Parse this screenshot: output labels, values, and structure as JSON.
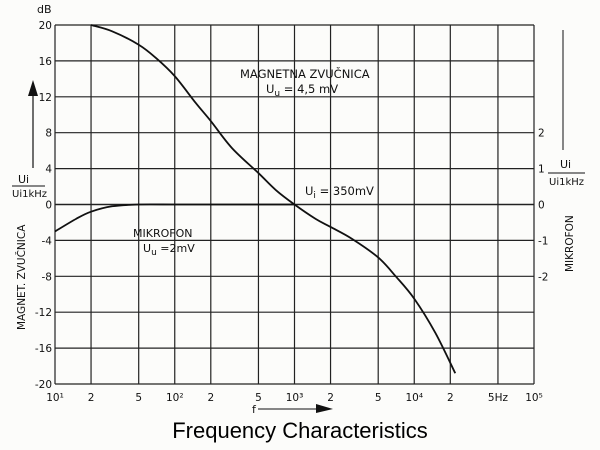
{
  "chart_data": {
    "type": "line",
    "title": "Frequency Characteristics",
    "x_scale": "log",
    "xlim": [
      10,
      100000
    ],
    "x_tick_labels": [
      "10¹",
      "2",
      "5",
      "10²",
      "2",
      "5",
      "10³",
      "2",
      "5",
      "10⁴",
      "2",
      "5Hz",
      "10⁵"
    ],
    "x_tick_values": [
      10,
      20,
      50,
      100,
      200,
      500,
      1000,
      2000,
      5000,
      10000,
      20000,
      50000,
      100000
    ],
    "xlabel": "f",
    "ylim": [
      -20,
      20
    ],
    "y_unit": "dB",
    "y_tick_values": [
      20,
      16,
      12,
      8,
      4,
      0,
      -4,
      -8,
      -12,
      -16,
      -20
    ],
    "ylabel_left": {
      "ratio_num": "Ui",
      "ratio_den": "Ui1kHz",
      "name": "MAGNET. ZVUČNICA"
    },
    "right_axis": {
      "ticks": [
        {
          "label": "2",
          "at_db": 8
        },
        {
          "label": "1",
          "at_db": 4
        },
        {
          "label": "0",
          "at_db": 0
        },
        {
          "label": "-1",
          "at_db": -4
        },
        {
          "label": "-2",
          "at_db": -8
        }
      ],
      "ratio_num": "Ui",
      "ratio_den": "Ui1kHz",
      "name": "MIKROFON"
    },
    "grid": true,
    "series": [
      {
        "name": "MAGNETNA ZVUČNICA",
        "x": [
          20,
          30,
          50,
          70,
          100,
          150,
          200,
          300,
          500,
          700,
          1000,
          1500,
          2000,
          3000,
          5000,
          7000,
          10000,
          15000,
          22000
        ],
        "y": [
          20,
          19.3,
          17.8,
          16.3,
          14.3,
          11.3,
          9.3,
          6.3,
          3.5,
          1.6,
          0,
          -1.6,
          -2.5,
          -3.8,
          -5.9,
          -8,
          -10.5,
          -14.3,
          -18.8
        ]
      },
      {
        "name": "MIKROFON",
        "x": [
          10,
          15,
          20,
          30,
          50,
          100,
          200,
          500,
          1000
        ],
        "y": [
          -3,
          -1.6,
          -0.8,
          -0.2,
          0,
          0,
          0,
          0,
          0
        ]
      }
    ],
    "annotations": {
      "magnet_label": "MAGNETNA  ZVUČNICA",
      "magnet_uu_sym": "U",
      "magnet_uu_sub": "u",
      "magnet_uu_val": " = 4,5 mV",
      "ui_sym": "U",
      "ui_sub": "i",
      "ui_val": " = 350mV",
      "mic_label": "MIKROFON",
      "mic_uu_sym": "U",
      "mic_uu_sub": "u",
      "mic_uu_val": " =2mV"
    },
    "colors": {
      "line": "#111111",
      "grid": "#222222",
      "background": "#fcfcfa"
    }
  }
}
